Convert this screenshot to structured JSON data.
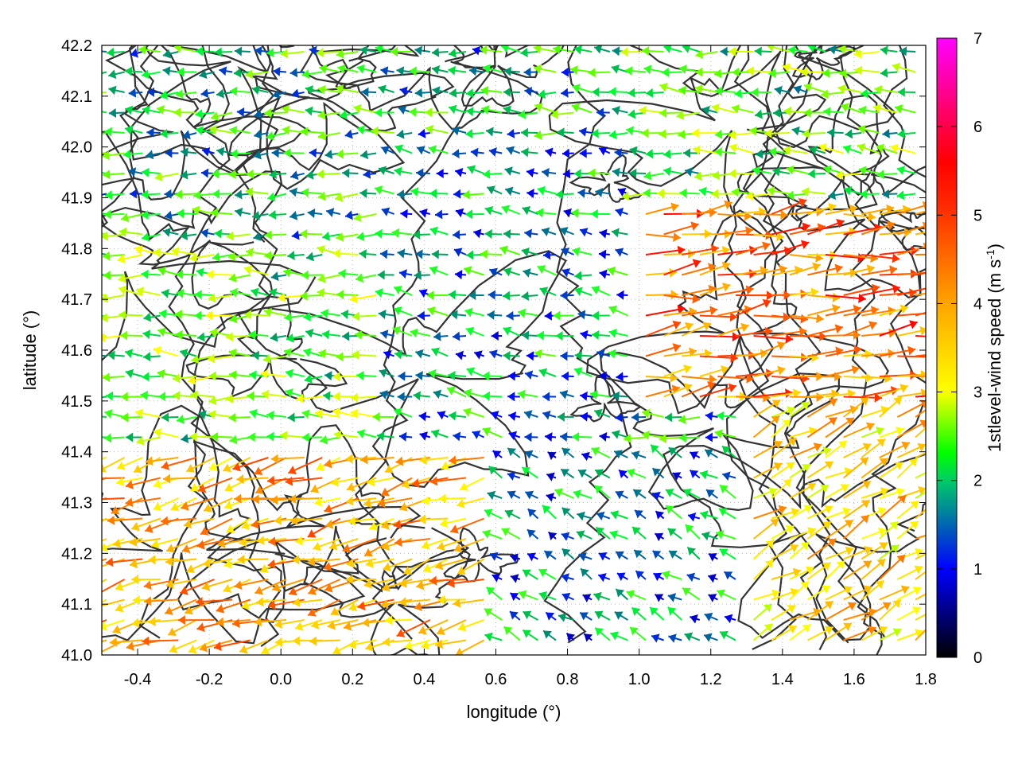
{
  "chart_data": {
    "type": "vector-field",
    "title": "",
    "xlabel": "longitude (°)",
    "ylabel": "latitude (°)",
    "xlim": [
      -0.5,
      1.8
    ],
    "ylim": [
      41.0,
      42.2
    ],
    "xticks": [
      "-0.4",
      "-0.2",
      "0.0",
      "0.2",
      "0.4",
      "0.6",
      "0.8",
      "1.0",
      "1.2",
      "1.4",
      "1.6",
      "1.8"
    ],
    "xtick_values": [
      -0.4,
      -0.2,
      0.0,
      0.2,
      0.4,
      0.6,
      0.8,
      1.0,
      1.2,
      1.4,
      1.6,
      1.8
    ],
    "yticks": [
      "41.0",
      "41.1",
      "41.2",
      "41.3",
      "41.4",
      "41.5",
      "41.6",
      "41.7",
      "41.8",
      "41.9",
      "42.0",
      "42.1",
      "42.2"
    ],
    "ytick_values": [
      41.0,
      41.1,
      41.2,
      41.3,
      41.4,
      41.5,
      41.6,
      41.7,
      41.8,
      41.9,
      42.0,
      42.1,
      42.2
    ],
    "grid": true,
    "colorbar": {
      "label_html": "1stlevel-wind speed (m s<tspan baseline-shift=\"super\" font-size=\"14\">-1</tspan>)",
      "range": [
        0,
        7
      ],
      "ticks": [
        "0",
        "1",
        "2",
        "3",
        "4",
        "5",
        "6",
        "7"
      ],
      "tick_values": [
        0,
        1,
        2,
        3,
        4,
        5,
        6,
        7
      ],
      "palette": [
        "#000000",
        "#0000ff",
        "#00ff00",
        "#ffff00",
        "#ffa500",
        "#ff0000",
        "#ff00ff"
      ]
    },
    "contour_color": "#333333",
    "vector_sample": {
      "note_free": true,
      "regions": [
        {
          "lon": [
            -0.5,
            0.3
          ],
          "lat": [
            41.8,
            42.2
          ],
          "dir_deg": 180,
          "speed": 1.9
        },
        {
          "lon": [
            -0.5,
            0.3
          ],
          "lat": [
            41.4,
            41.8
          ],
          "dir_deg": 178,
          "speed": 2.3
        },
        {
          "lon": [
            -0.5,
            0.6
          ],
          "lat": [
            41.0,
            41.4
          ],
          "dir_deg": 195,
          "speed": 3.8
        },
        {
          "lon": [
            0.3,
            1.0
          ],
          "lat": [
            41.4,
            42.0
          ],
          "dir_deg": 170,
          "speed": 1.6
        },
        {
          "lon": [
            1.0,
            1.8
          ],
          "lat": [
            41.5,
            41.9
          ],
          "dir_deg": 8,
          "speed": 4.2
        },
        {
          "lon": [
            1.0,
            1.8
          ],
          "lat": [
            41.9,
            42.2
          ],
          "dir_deg": 175,
          "speed": 2.2
        },
        {
          "lon": [
            0.6,
            1.3
          ],
          "lat": [
            41.0,
            41.4
          ],
          "dir_deg": 150,
          "speed": 1.5
        },
        {
          "lon": [
            1.3,
            1.8
          ],
          "lat": [
            41.0,
            41.5
          ],
          "dir_deg": 30,
          "speed": 3.5
        }
      ]
    }
  }
}
